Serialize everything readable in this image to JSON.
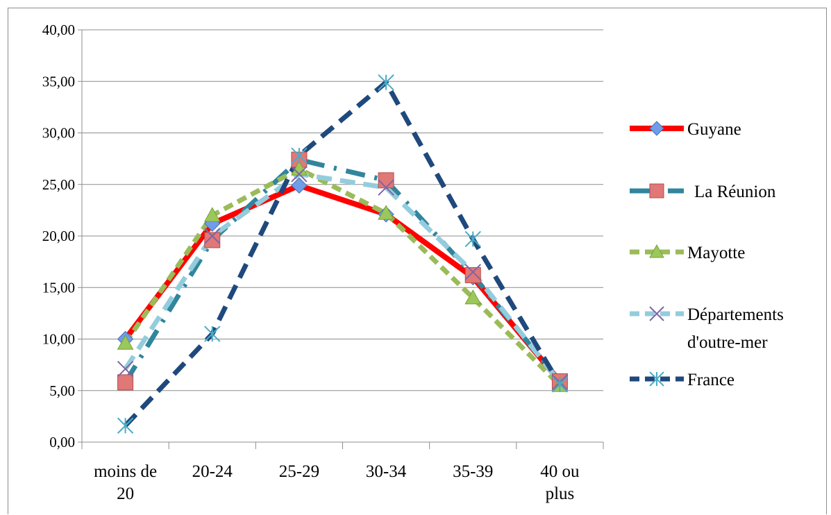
{
  "chart_data": {
    "type": "line",
    "title": "",
    "xlabel": "",
    "ylabel": "",
    "categories": [
      [
        "moins de",
        "20"
      ],
      [
        "20-24"
      ],
      [
        "25-29"
      ],
      [
        "30-34"
      ],
      [
        "35-39"
      ],
      [
        "40 ou",
        "plus"
      ]
    ],
    "yticks": [
      "0,00",
      "5,00",
      "10,00",
      "15,00",
      "20,00",
      "25,00",
      "30,00",
      "35,00",
      "40,00"
    ],
    "ylim": [
      0,
      40
    ],
    "grid": true,
    "legend_position": "right",
    "series": [
      {
        "name": "Guyane",
        "values": [
          10.0,
          21.2,
          24.9,
          22.1,
          16.0,
          5.9
        ],
        "color": "#ff0000",
        "marker": "diamond",
        "marker_fill": "#6f9de8",
        "dash": "solid"
      },
      {
        "name": "La Réunion",
        "values": [
          5.8,
          19.6,
          27.4,
          25.4,
          16.2,
          5.9
        ],
        "color": "#31859c",
        "marker": "square",
        "marker_fill": "#e07878",
        "dash": "long-dash-dot"
      },
      {
        "name": "Mayotte",
        "values": [
          9.6,
          22.0,
          26.5,
          22.2,
          14.0,
          5.5
        ],
        "color": "#9bbb59",
        "marker": "triangle",
        "marker_fill": "#9bc85a",
        "dash": "dash"
      },
      {
        "name": [
          "Départements",
          "d'outre-mer"
        ],
        "values": [
          7.1,
          20.0,
          26.0,
          24.7,
          16.5,
          5.8
        ],
        "color": "#93cddd",
        "marker": "x",
        "marker_fill": "#8064a2",
        "dash": "long-dash"
      },
      {
        "name": "France",
        "values": [
          1.6,
          10.5,
          27.8,
          34.9,
          19.7,
          5.6
        ],
        "color": "#1f497d",
        "marker": "asterisk",
        "marker_fill": "#4bacc6",
        "dash": "long-dash"
      }
    ]
  }
}
